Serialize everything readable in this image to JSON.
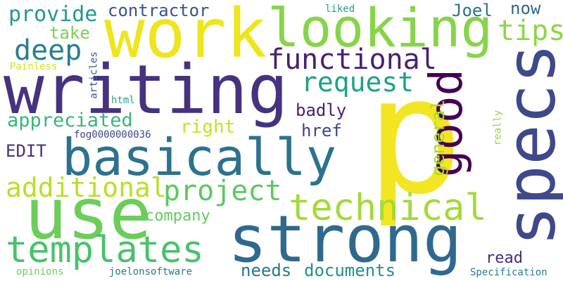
{
  "words": [
    {
      "text": "p",
      "color": "#f4e523"
    },
    {
      "text": "writing",
      "color": "#46327e"
    },
    {
      "text": "work",
      "color": "#eee51c"
    },
    {
      "text": "strong",
      "color": "#30698e"
    },
    {
      "text": "use",
      "color": "#6ccd5a"
    },
    {
      "text": "specs",
      "color": "#3f4889"
    },
    {
      "text": "looking",
      "color": "#86d549"
    },
    {
      "text": "basically",
      "color": "#2c728e"
    },
    {
      "text": "good",
      "color": "#440154"
    },
    {
      "text": "technical",
      "color": "#a2da37"
    },
    {
      "text": "templates",
      "color": "#4ac16d"
    },
    {
      "text": "functional",
      "color": "#482173"
    },
    {
      "text": "project",
      "color": "#5cc863"
    },
    {
      "text": "additional",
      "color": "#bade28"
    },
    {
      "text": "request",
      "color": "#1fa187"
    },
    {
      "text": "deep",
      "color": "#277f8e"
    },
    {
      "text": "tips",
      "color": "#8ed645"
    },
    {
      "text": "provide",
      "color": "#1f9a8a"
    },
    {
      "text": "contractor",
      "color": "#3b528b"
    },
    {
      "text": "appreciated",
      "color": "#35b779"
    },
    {
      "text": "general",
      "color": "#a5db36"
    },
    {
      "text": "right",
      "color": "#c8e020"
    },
    {
      "text": "href",
      "color": "#414487"
    },
    {
      "text": "badly",
      "color": "#481f70"
    },
    {
      "text": "take",
      "color": "#7ad151"
    },
    {
      "text": "Joel",
      "color": "#2d708e"
    },
    {
      "text": "now",
      "color": "#31688e"
    },
    {
      "text": "EDIT",
      "color": "#46307e"
    },
    {
      "text": "company",
      "color": "#65cb5e"
    },
    {
      "text": "needs",
      "color": "#2a788e"
    },
    {
      "text": "documents",
      "color": "#21918c"
    },
    {
      "text": "read",
      "color": "#472d7b"
    },
    {
      "text": "fog0000000036",
      "color": "#3e4989"
    },
    {
      "text": "articles",
      "color": "#3b528b"
    },
    {
      "text": "html",
      "color": "#20a486"
    },
    {
      "text": "joelonsoftware",
      "color": "#2a788e"
    },
    {
      "text": "opinions",
      "color": "#6ece58"
    },
    {
      "text": "Specification",
      "color": "#287d8e"
    },
    {
      "text": "Painless",
      "color": "#d8e219"
    },
    {
      "text": "liked",
      "color": "#1f9e89"
    },
    {
      "text": "really",
      "color": "#8fd744"
    }
  ]
}
